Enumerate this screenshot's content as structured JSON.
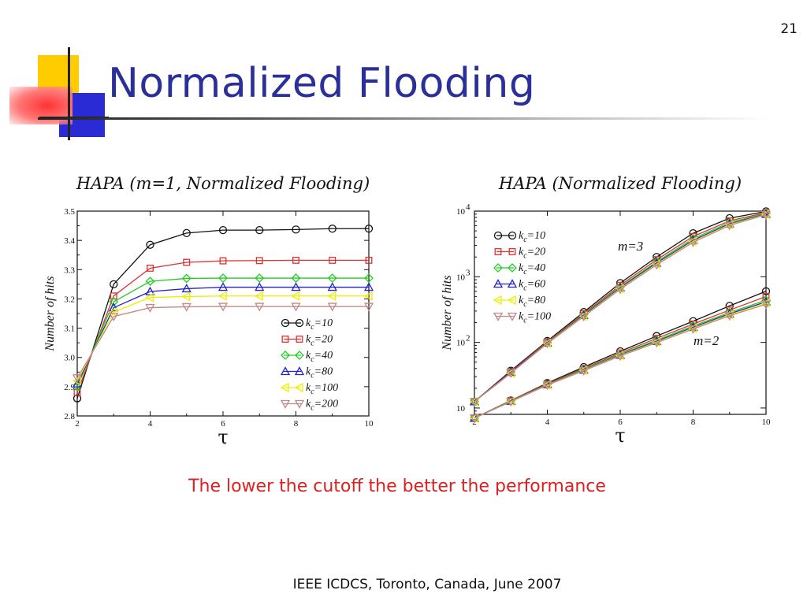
{
  "slide": {
    "number": "21",
    "title": "Normalized Flooding",
    "caption": "The lower the cutoff the better the performance",
    "footer": "IEEE ICDCS, Toronto, Canada, June 2007"
  },
  "colors": {
    "title": "#2a2f9a",
    "caption": "#e02020",
    "deco_yellow": "#ffcc00",
    "deco_blue": "#2b2bd6",
    "deco_red": "#ff3333"
  },
  "chart_data": [
    {
      "type": "line",
      "title": "HAPA (m=1, Normalized Flooding)",
      "xlabel": "τ",
      "ylabel": "Number of hits",
      "xlim": [
        2,
        10
      ],
      "ylim": [
        2.8,
        3.5
      ],
      "yscale": "linear",
      "xticks": [
        "2",
        "4",
        "6",
        "8",
        "10"
      ],
      "yticks": [
        "2.8",
        "2.9",
        "3.0",
        "3.1",
        "3.2",
        "3.3",
        "3.4",
        "3.5"
      ],
      "x": [
        2,
        3,
        4,
        5,
        6,
        7,
        8,
        9,
        10
      ],
      "legend_position": "bottom-right",
      "series": [
        {
          "name": "k_c=10",
          "sub": "c",
          "label_main": "k",
          "label_rest": "=10",
          "color": "#111111",
          "marker": "circle",
          "values": [
            2.86,
            3.25,
            3.385,
            3.425,
            3.435,
            3.435,
            3.437,
            3.44,
            3.44
          ]
        },
        {
          "name": "k_c=20",
          "sub": "c",
          "label_main": "k",
          "label_rest": "=20",
          "color": "#e03030",
          "marker": "square",
          "values": [
            2.88,
            3.21,
            3.305,
            3.325,
            3.33,
            3.331,
            3.332,
            3.332,
            3.332
          ]
        },
        {
          "name": "k_c=40",
          "sub": "c",
          "label_main": "k",
          "label_rest": "=40",
          "color": "#22cc22",
          "marker": "diamond",
          "values": [
            2.9,
            3.19,
            3.26,
            3.27,
            3.271,
            3.271,
            3.271,
            3.271,
            3.271
          ]
        },
        {
          "name": "k_c=80",
          "sub": "c",
          "label_main": "k",
          "label_rest": "=80",
          "color": "#2222cc",
          "marker": "triangle",
          "values": [
            2.91,
            3.17,
            3.225,
            3.235,
            3.24,
            3.24,
            3.24,
            3.24,
            3.24
          ]
        },
        {
          "name": "k_c=100",
          "sub": "c",
          "label_main": "k",
          "label_rest": "=100",
          "color": "#eeee00",
          "marker": "left",
          "values": [
            2.92,
            3.155,
            3.205,
            3.208,
            3.21,
            3.21,
            3.21,
            3.21,
            3.21
          ]
        },
        {
          "name": "k_c=200",
          "sub": "c",
          "label_main": "k",
          "label_rest": "=200",
          "color": "#c08888",
          "marker": "down",
          "values": [
            2.93,
            3.14,
            3.17,
            3.173,
            3.174,
            3.174,
            3.174,
            3.174,
            3.174
          ]
        }
      ]
    },
    {
      "type": "line",
      "title": "HAPA (Normalized Flooding)",
      "xlabel": "τ",
      "ylabel": "Number of hits",
      "xlim": [
        2,
        10
      ],
      "ylim": [
        8,
        10000
      ],
      "yscale": "log",
      "xticks": [
        "2",
        "4",
        "6",
        "8",
        "10"
      ],
      "yticks": [
        {
          "base": "10",
          "exp": ""
        },
        {
          "base": "10",
          "exp": "2"
        },
        {
          "base": "10",
          "exp": "3"
        },
        {
          "base": "10",
          "exp": "4"
        }
      ],
      "x": [
        2,
        3,
        4,
        5,
        6,
        7,
        8,
        9,
        10
      ],
      "legend_position": "top-left",
      "annotations": [
        "m=3",
        "m=2"
      ],
      "series": [
        {
          "name": "k_c=10, m=3",
          "sub": "c",
          "label_main": "k",
          "label_rest": "=10",
          "color": "#111111",
          "marker": "circle",
          "values": [
            12.5,
            37,
            105,
            290,
            800,
            2000,
            4600,
            7800,
            9900
          ]
        },
        {
          "name": "k_c=20, m=3",
          "sub": "c",
          "label_main": "k",
          "label_rest": "=20",
          "color": "#e03030",
          "marker": "square",
          "values": [
            12.5,
            36,
            102,
            275,
            740,
            1820,
            4100,
            7100,
            9500
          ]
        },
        {
          "name": "k_c=40, m=3",
          "sub": "c",
          "label_main": "k",
          "label_rest": "=40",
          "color": "#22cc22",
          "marker": "diamond",
          "values": [
            12.5,
            35,
            99,
            265,
            700,
            1700,
            3800,
            6700,
            9200
          ]
        },
        {
          "name": "k_c=60, m=3",
          "sub": "c",
          "label_main": "k",
          "label_rest": "=60",
          "color": "#2222cc",
          "marker": "triangle",
          "values": [
            12.5,
            35,
            98,
            258,
            680,
            1620,
            3600,
            6400,
            9000
          ]
        },
        {
          "name": "k_c=80, m=3",
          "sub": "c",
          "label_main": "k",
          "label_rest": "=80",
          "color": "#eeee00",
          "marker": "left",
          "values": [
            12.5,
            34,
            97,
            252,
            660,
            1560,
            3450,
            6200,
            8900
          ]
        },
        {
          "name": "k_c=100, m=3",
          "sub": "c",
          "label_main": "k",
          "label_rest": "=100",
          "color": "#c08888",
          "marker": "down",
          "values": [
            12.5,
            34,
            96,
            248,
            645,
            1520,
            3350,
            6050,
            8800
          ]
        },
        {
          "name": "k_c=10, m=2",
          "color": "#111111",
          "marker": "circle",
          "values": [
            7,
            13,
            24,
            42,
            73,
            125,
            210,
            360,
            600
          ]
        },
        {
          "name": "k_c=20, m=2",
          "color": "#e03030",
          "marker": "square",
          "values": [
            7,
            13,
            23.5,
            40,
            69,
            115,
            190,
            310,
            500
          ]
        },
        {
          "name": "k_c=40, m=2",
          "color": "#22cc22",
          "marker": "diamond",
          "values": [
            7,
            12.8,
            23,
            39,
            66,
            108,
            178,
            285,
            440
          ]
        },
        {
          "name": "k_c=60, m=2",
          "color": "#2222cc",
          "marker": "triangle",
          "values": [
            7,
            12.7,
            22.8,
            38,
            64,
            104,
            170,
            272,
            415
          ]
        },
        {
          "name": "k_c=80, m=2",
          "color": "#eeee00",
          "marker": "left",
          "values": [
            7,
            12.6,
            22.5,
            37.5,
            63,
            101,
            164,
            262,
            395
          ]
        },
        {
          "name": "k_c=100, m=2",
          "color": "#c08888",
          "marker": "down",
          "values": [
            7,
            12.5,
            22.3,
            37,
            62,
            99,
            160,
            255,
            380
          ]
        }
      ]
    }
  ]
}
